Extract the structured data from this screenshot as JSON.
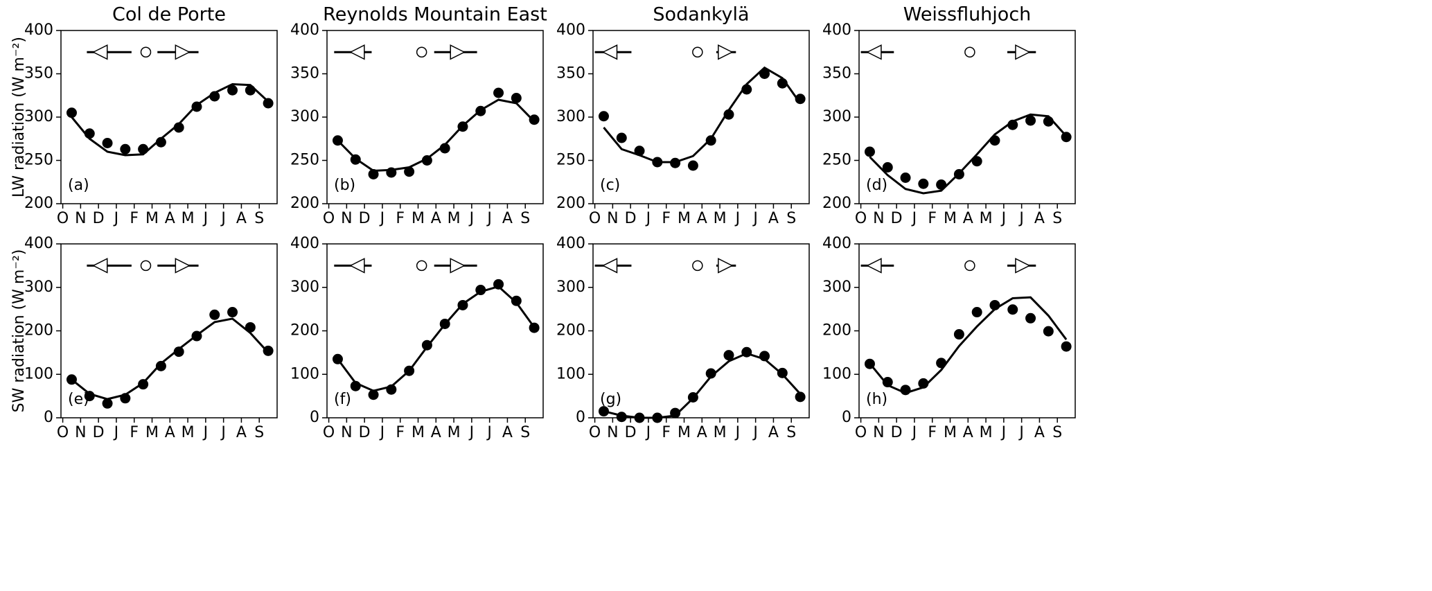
{
  "chart_data": [
    {
      "type": "line",
      "title": "Col de Porte",
      "ylabel": "LW radiation (W m⁻²)",
      "panel_label": "(a)",
      "x": [
        0.5,
        1.5,
        2.5,
        3.5,
        4.5,
        5.5,
        6.5,
        7.5,
        8.5,
        9.5,
        10.5,
        11.5
      ],
      "xlim": [
        -0.1,
        12
      ],
      "xticks": [
        {
          "value": 0,
          "label": "O"
        },
        {
          "value": 1,
          "label": "N"
        },
        {
          "value": 2,
          "label": "D"
        },
        {
          "value": 3,
          "label": "J"
        },
        {
          "value": 4,
          "label": "F"
        },
        {
          "value": 5,
          "label": "M"
        },
        {
          "value": 6,
          "label": "A"
        },
        {
          "value": 7,
          "label": "M"
        },
        {
          "value": 8,
          "label": "J"
        },
        {
          "value": 9,
          "label": "J"
        },
        {
          "value": 10,
          "label": "A"
        },
        {
          "value": 11,
          "label": "S"
        }
      ],
      "ylim": [
        200,
        400
      ],
      "yticks": [
        200,
        250,
        300,
        350,
        400
      ],
      "series": [
        {
          "style": "dots",
          "color": "#000000",
          "values": [
            305,
            281,
            270,
            263,
            263,
            271,
            288,
            312,
            324,
            331,
            331,
            316
          ]
        },
        {
          "style": "line",
          "color": "#000000",
          "values": [
            300,
            275,
            260,
            256,
            257,
            275,
            292,
            314,
            328,
            338,
            337,
            318
          ]
        }
      ],
      "markers": {
        "y": 375,
        "start": [
          1.35,
          2.1,
          3.85
        ],
        "mid": 4.65,
        "end": [
          5.3,
          6.7,
          7.6
        ]
      }
    },
    {
      "type": "line",
      "title": "Reynolds Mountain East",
      "panel_label": "(b)",
      "x": [
        0.5,
        1.5,
        2.5,
        3.5,
        4.5,
        5.5,
        6.5,
        7.5,
        8.5,
        9.5,
        10.5,
        11.5
      ],
      "xlim": [
        -0.1,
        12
      ],
      "xticks": [
        {
          "value": 0,
          "label": "O"
        },
        {
          "value": 1,
          "label": "N"
        },
        {
          "value": 2,
          "label": "D"
        },
        {
          "value": 3,
          "label": "J"
        },
        {
          "value": 4,
          "label": "F"
        },
        {
          "value": 5,
          "label": "M"
        },
        {
          "value": 6,
          "label": "A"
        },
        {
          "value": 7,
          "label": "M"
        },
        {
          "value": 8,
          "label": "J"
        },
        {
          "value": 9,
          "label": "J"
        },
        {
          "value": 10,
          "label": "A"
        },
        {
          "value": 11,
          "label": "S"
        }
      ],
      "ylim": [
        200,
        400
      ],
      "yticks": [
        200,
        250,
        300,
        350,
        400
      ],
      "series": [
        {
          "style": "dots",
          "color": "#000000",
          "values": [
            273,
            251,
            234,
            236,
            237,
            250,
            264,
            289,
            307,
            328,
            322,
            297
          ]
        },
        {
          "style": "line",
          "color": "#000000",
          "values": [
            273,
            252,
            238,
            239,
            242,
            252,
            268,
            290,
            308,
            320,
            316,
            295
          ]
        }
      ],
      "markers": {
        "y": 375,
        "start": [
          0.3,
          1.6,
          2.4
        ],
        "mid": 5.2,
        "end": [
          5.9,
          7.2,
          8.3
        ]
      }
    },
    {
      "type": "line",
      "title": "Sodankylä",
      "panel_label": "(c)",
      "x": [
        0.5,
        1.5,
        2.5,
        3.5,
        4.5,
        5.5,
        6.5,
        7.5,
        8.5,
        9.5,
        10.5,
        11.5
      ],
      "xlim": [
        -0.1,
        12
      ],
      "xticks": [
        {
          "value": 0,
          "label": "O"
        },
        {
          "value": 1,
          "label": "N"
        },
        {
          "value": 2,
          "label": "D"
        },
        {
          "value": 3,
          "label": "J"
        },
        {
          "value": 4,
          "label": "F"
        },
        {
          "value": 5,
          "label": "M"
        },
        {
          "value": 6,
          "label": "A"
        },
        {
          "value": 7,
          "label": "M"
        },
        {
          "value": 8,
          "label": "J"
        },
        {
          "value": 9,
          "label": "J"
        },
        {
          "value": 10,
          "label": "A"
        },
        {
          "value": 11,
          "label": "S"
        }
      ],
      "ylim": [
        200,
        400
      ],
      "yticks": [
        200,
        250,
        300,
        350,
        400
      ],
      "series": [
        {
          "style": "dots",
          "color": "#000000",
          "values": [
            301,
            276,
            261,
            248,
            247,
            244,
            273,
            303,
            332,
            350,
            339,
            321
          ]
        },
        {
          "style": "line",
          "color": "#000000",
          "values": [
            288,
            263,
            256,
            248,
            248,
            255,
            275,
            308,
            338,
            357,
            345,
            316
          ]
        }
      ],
      "markers": {
        "y": 375,
        "start": [
          0,
          0.85,
          2.05
        ],
        "mid": 5.75,
        "end": [
          6.8,
          7.3,
          7.9
        ]
      }
    },
    {
      "type": "line",
      "title": "Weissfluhjoch",
      "panel_label": "(d)",
      "x": [
        0.5,
        1.5,
        2.5,
        3.5,
        4.5,
        5.5,
        6.5,
        7.5,
        8.5,
        9.5,
        10.5,
        11.5
      ],
      "xlim": [
        -0.1,
        12
      ],
      "xticks": [
        {
          "value": 0,
          "label": "O"
        },
        {
          "value": 1,
          "label": "N"
        },
        {
          "value": 2,
          "label": "D"
        },
        {
          "value": 3,
          "label": "J"
        },
        {
          "value": 4,
          "label": "F"
        },
        {
          "value": 5,
          "label": "M"
        },
        {
          "value": 6,
          "label": "A"
        },
        {
          "value": 7,
          "label": "M"
        },
        {
          "value": 8,
          "label": "J"
        },
        {
          "value": 9,
          "label": "J"
        },
        {
          "value": 10,
          "label": "A"
        },
        {
          "value": 11,
          "label": "S"
        }
      ],
      "ylim": [
        200,
        400
      ],
      "yticks": [
        200,
        250,
        300,
        350,
        400
      ],
      "series": [
        {
          "style": "dots",
          "color": "#000000",
          "values": [
            260,
            242,
            230,
            223,
            222,
            234,
            249,
            273,
            291,
            296,
            295,
            277
          ]
        },
        {
          "style": "line",
          "color": "#000000",
          "values": [
            254,
            233,
            217,
            212,
            215,
            235,
            257,
            280,
            295,
            303,
            301,
            278
          ]
        }
      ],
      "markers": {
        "y": 375,
        "start": [
          0,
          0.75,
          1.85
        ],
        "mid": 6.1,
        "end": [
          8.2,
          9.05,
          9.8
        ]
      }
    },
    {
      "type": "line",
      "ylabel": "SW radiation (W m⁻²)",
      "panel_label": "(e)",
      "x": [
        0.5,
        1.5,
        2.5,
        3.5,
        4.5,
        5.5,
        6.5,
        7.5,
        8.5,
        9.5,
        10.5,
        11.5
      ],
      "xlim": [
        -0.1,
        12
      ],
      "xticks": [
        {
          "value": 0,
          "label": "O"
        },
        {
          "value": 1,
          "label": "N"
        },
        {
          "value": 2,
          "label": "D"
        },
        {
          "value": 3,
          "label": "J"
        },
        {
          "value": 4,
          "label": "F"
        },
        {
          "value": 5,
          "label": "M"
        },
        {
          "value": 6,
          "label": "A"
        },
        {
          "value": 7,
          "label": "M"
        },
        {
          "value": 8,
          "label": "J"
        },
        {
          "value": 9,
          "label": "J"
        },
        {
          "value": 10,
          "label": "A"
        },
        {
          "value": 11,
          "label": "S"
        }
      ],
      "ylim": [
        0,
        400
      ],
      "yticks": [
        0,
        100,
        200,
        300,
        400
      ],
      "series": [
        {
          "style": "dots",
          "color": "#000000",
          "values": [
            88,
            50,
            33,
            45,
            77,
            119,
            152,
            188,
            237,
            243,
            208,
            154
          ]
        },
        {
          "style": "line",
          "color": "#000000",
          "values": [
            88,
            55,
            43,
            53,
            80,
            125,
            158,
            190,
            220,
            228,
            195,
            150
          ]
        }
      ],
      "markers": {
        "y": 350,
        "start": [
          1.35,
          2.1,
          3.85
        ],
        "mid": 4.65,
        "end": [
          5.3,
          6.7,
          7.6
        ]
      }
    },
    {
      "type": "line",
      "panel_label": "(f)",
      "x": [
        0.5,
        1.5,
        2.5,
        3.5,
        4.5,
        5.5,
        6.5,
        7.5,
        8.5,
        9.5,
        10.5,
        11.5
      ],
      "xlim": [
        -0.1,
        12
      ],
      "xticks": [
        {
          "value": 0,
          "label": "O"
        },
        {
          "value": 1,
          "label": "N"
        },
        {
          "value": 2,
          "label": "D"
        },
        {
          "value": 3,
          "label": "J"
        },
        {
          "value": 4,
          "label": "F"
        },
        {
          "value": 5,
          "label": "M"
        },
        {
          "value": 6,
          "label": "A"
        },
        {
          "value": 7,
          "label": "M"
        },
        {
          "value": 8,
          "label": "J"
        },
        {
          "value": 9,
          "label": "J"
        },
        {
          "value": 10,
          "label": "A"
        },
        {
          "value": 11,
          "label": "S"
        }
      ],
      "ylim": [
        0,
        400
      ],
      "yticks": [
        0,
        100,
        200,
        300,
        400
      ],
      "series": [
        {
          "style": "dots",
          "color": "#000000",
          "values": [
            135,
            73,
            53,
            65,
            108,
            167,
            216,
            259,
            294,
            307,
            269,
            207
          ]
        },
        {
          "style": "line",
          "color": "#000000",
          "values": [
            135,
            80,
            62,
            72,
            108,
            163,
            215,
            262,
            290,
            302,
            265,
            208
          ]
        }
      ],
      "markers": {
        "y": 350,
        "start": [
          0.3,
          1.6,
          2.4
        ],
        "mid": 5.2,
        "end": [
          5.9,
          7.2,
          8.3
        ]
      }
    },
    {
      "type": "line",
      "panel_label": "(g)",
      "x": [
        0.5,
        1.5,
        2.5,
        3.5,
        4.5,
        5.5,
        6.5,
        7.5,
        8.5,
        9.5,
        10.5,
        11.5
      ],
      "xlim": [
        -0.1,
        12
      ],
      "xticks": [
        {
          "value": 0,
          "label": "O"
        },
        {
          "value": 1,
          "label": "N"
        },
        {
          "value": 2,
          "label": "D"
        },
        {
          "value": 3,
          "label": "J"
        },
        {
          "value": 4,
          "label": "F"
        },
        {
          "value": 5,
          "label": "M"
        },
        {
          "value": 6,
          "label": "A"
        },
        {
          "value": 7,
          "label": "M"
        },
        {
          "value": 8,
          "label": "J"
        },
        {
          "value": 9,
          "label": "J"
        },
        {
          "value": 10,
          "label": "A"
        },
        {
          "value": 11,
          "label": "S"
        }
      ],
      "ylim": [
        0,
        400
      ],
      "yticks": [
        0,
        100,
        200,
        300,
        400
      ],
      "series": [
        {
          "style": "dots",
          "color": "#000000",
          "values": [
            15,
            2,
            0,
            0,
            11,
            47,
            102,
            144,
            151,
            142,
            103,
            48
          ]
        },
        {
          "style": "line",
          "color": "#000000",
          "values": [
            15,
            5,
            0,
            0,
            5,
            45,
            95,
            130,
            148,
            135,
            100,
            55
          ]
        }
      ],
      "markers": {
        "y": 350,
        "start": [
          0,
          0.85,
          2.05
        ],
        "mid": 5.75,
        "end": [
          6.8,
          7.3,
          7.9
        ]
      }
    },
    {
      "type": "line",
      "panel_label": "(h)",
      "x": [
        0.5,
        1.5,
        2.5,
        3.5,
        4.5,
        5.5,
        6.5,
        7.5,
        8.5,
        9.5,
        10.5,
        11.5
      ],
      "xlim": [
        -0.1,
        12
      ],
      "xticks": [
        {
          "value": 0,
          "label": "O"
        },
        {
          "value": 1,
          "label": "N"
        },
        {
          "value": 2,
          "label": "D"
        },
        {
          "value": 3,
          "label": "J"
        },
        {
          "value": 4,
          "label": "F"
        },
        {
          "value": 5,
          "label": "M"
        },
        {
          "value": 6,
          "label": "A"
        },
        {
          "value": 7,
          "label": "M"
        },
        {
          "value": 8,
          "label": "J"
        },
        {
          "value": 9,
          "label": "J"
        },
        {
          "value": 10,
          "label": "A"
        },
        {
          "value": 11,
          "label": "S"
        }
      ],
      "ylim": [
        0,
        400
      ],
      "yticks": [
        0,
        100,
        200,
        300,
        400
      ],
      "series": [
        {
          "style": "dots",
          "color": "#000000",
          "values": [
            124,
            82,
            64,
            79,
            126,
            192,
            243,
            259,
            249,
            229,
            199,
            164
          ]
        },
        {
          "style": "line",
          "color": "#000000",
          "values": [
            125,
            75,
            57,
            70,
            110,
            165,
            210,
            250,
            275,
            277,
            235,
            180
          ]
        }
      ],
      "markers": {
        "y": 350,
        "start": [
          0,
          0.75,
          1.85
        ],
        "mid": 6.1,
        "end": [
          8.2,
          9.05,
          9.8
        ]
      }
    }
  ]
}
